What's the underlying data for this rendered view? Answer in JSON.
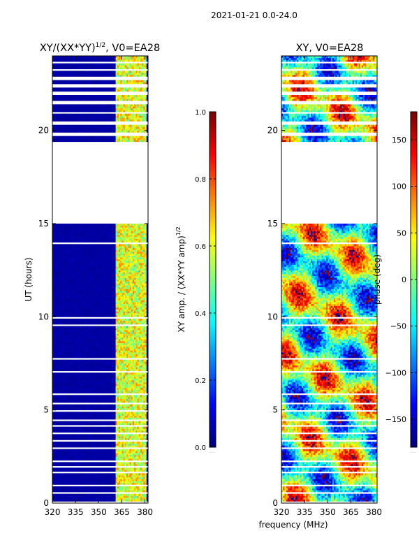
{
  "figure": {
    "suptitle": "2021-01-21 0.0-24.0",
    "xlabel": "frequency (MHz)",
    "colorbar_placeholder": "......"
  },
  "colors": {
    "jet": [
      "#00007f",
      "#0000ff",
      "#007fff",
      "#00ffff",
      "#7fff7f",
      "#ffff00",
      "#ff7f00",
      "#ff0000",
      "#7f0000"
    ],
    "flagged": "#ffffff",
    "axis": "#000000"
  },
  "chart_data": [
    {
      "type": "heatmap",
      "id": "amp",
      "title_text": "XY/(XX*YY)",
      "title_superscript": "1/2",
      "title_tail": ", V0=EA28",
      "xlabel": "",
      "ylabel": "UT (hours)",
      "xlim": [
        320,
        382
      ],
      "ylim": [
        0,
        24
      ],
      "xticks": [
        320,
        335,
        350,
        365,
        380
      ],
      "yticks": [
        0,
        5,
        10,
        15,
        20
      ],
      "flagged_ut_ranges": [
        [
          0.05,
          0.12
        ],
        [
          0.55,
          0.65
        ],
        [
          0.9,
          1.0
        ],
        [
          1.6,
          1.7
        ],
        [
          1.95,
          2.05
        ],
        [
          2.2,
          2.3
        ],
        [
          2.6,
          2.65
        ],
        [
          2.85,
          2.95
        ],
        [
          3.35,
          3.4
        ],
        [
          3.7,
          3.78
        ],
        [
          4.1,
          4.2
        ],
        [
          4.4,
          4.5
        ],
        [
          4.9,
          5.0
        ],
        [
          5.35,
          5.45
        ],
        [
          5.8,
          5.9
        ],
        [
          6.0,
          6.05
        ],
        [
          6.2,
          6.25
        ],
        [
          7.05,
          7.1
        ],
        [
          7.7,
          7.8
        ],
        [
          8.0,
          8.05
        ],
        [
          8.5,
          8.55
        ],
        [
          9.1,
          9.15
        ],
        [
          9.55,
          9.6
        ],
        [
          9.95,
          10.0
        ],
        [
          10.3,
          10.35
        ],
        [
          11.6,
          11.65
        ],
        [
          12.5,
          12.55
        ],
        [
          13.9,
          14.0
        ],
        [
          14.3,
          14.35
        ],
        [
          14.7,
          14.75
        ],
        [
          15.0,
          19.4
        ],
        [
          19.7,
          19.85
        ],
        [
          20.35,
          20.5
        ],
        [
          20.95,
          21.05
        ],
        [
          21.4,
          21.6
        ],
        [
          21.9,
          22.1
        ],
        [
          22.35,
          22.5
        ],
        [
          22.7,
          22.85
        ],
        [
          23.2,
          23.3
        ],
        [
          23.6,
          23.7
        ]
      ],
      "active_freq_band_mhz": [
        361,
        381
      ],
      "active_channels_mhz": [
        362.5,
        365.5,
        368.5,
        371.5,
        374.5,
        377.5,
        380
      ],
      "background_value": 0.02,
      "band_value_range": [
        0.25,
        0.75
      ],
      "colorbar": {
        "label_text": "XY amp. / (XX*YY amp)",
        "label_superscript": "1/2",
        "vmin": 0.0,
        "vmax": 1.0,
        "ticks": [
          0.0,
          0.2,
          0.4,
          0.6,
          0.8,
          1.0
        ],
        "tick_labels": [
          "0.0",
          "0.2",
          "0.4",
          "0.6",
          "0.8",
          "1.0"
        ]
      }
    },
    {
      "type": "heatmap",
      "id": "phase",
      "title": "XY, V0=EA28",
      "xlabel": "",
      "ylabel": "",
      "xlim": [
        320,
        382
      ],
      "ylim": [
        0,
        24
      ],
      "xticks": [
        320,
        335,
        350,
        365,
        380
      ],
      "yticks": [
        0,
        5,
        10,
        15,
        20
      ],
      "flagged_ut_ranges": [
        [
          0.05,
          0.12
        ],
        [
          0.55,
          0.65
        ],
        [
          0.9,
          1.0
        ],
        [
          1.6,
          1.7
        ],
        [
          1.95,
          2.05
        ],
        [
          2.2,
          2.3
        ],
        [
          2.6,
          2.65
        ],
        [
          2.85,
          2.95
        ],
        [
          3.35,
          3.4
        ],
        [
          3.7,
          3.78
        ],
        [
          4.1,
          4.2
        ],
        [
          4.4,
          4.5
        ],
        [
          4.9,
          5.0
        ],
        [
          5.35,
          5.45
        ],
        [
          5.8,
          5.9
        ],
        [
          6.0,
          6.05
        ],
        [
          6.2,
          6.25
        ],
        [
          7.05,
          7.1
        ],
        [
          7.7,
          7.8
        ],
        [
          8.0,
          8.05
        ],
        [
          8.5,
          8.55
        ],
        [
          9.1,
          9.15
        ],
        [
          9.55,
          9.6
        ],
        [
          9.95,
          10.0
        ],
        [
          10.3,
          10.35
        ],
        [
          11.6,
          11.65
        ],
        [
          12.5,
          12.55
        ],
        [
          13.9,
          14.0
        ],
        [
          14.3,
          14.35
        ],
        [
          14.7,
          14.75
        ],
        [
          15.0,
          19.4
        ],
        [
          19.7,
          19.85
        ],
        [
          20.35,
          20.5
        ],
        [
          20.95,
          21.05
        ],
        [
          21.4,
          21.6
        ],
        [
          21.9,
          22.1
        ],
        [
          22.35,
          22.5
        ],
        [
          22.7,
          22.85
        ],
        [
          23.2,
          23.3
        ],
        [
          23.6,
          23.7
        ]
      ],
      "phase_range_deg": [
        -180,
        180
      ],
      "colorbar": {
        "label_text": "phase (deg)",
        "vmin": -180,
        "vmax": 180,
        "ticks": [
          -150,
          -100,
          -50,
          0,
          50,
          100,
          150
        ],
        "tick_labels": [
          "−150",
          "−100",
          "−50",
          "0",
          "50",
          "100",
          "150"
        ]
      }
    }
  ]
}
